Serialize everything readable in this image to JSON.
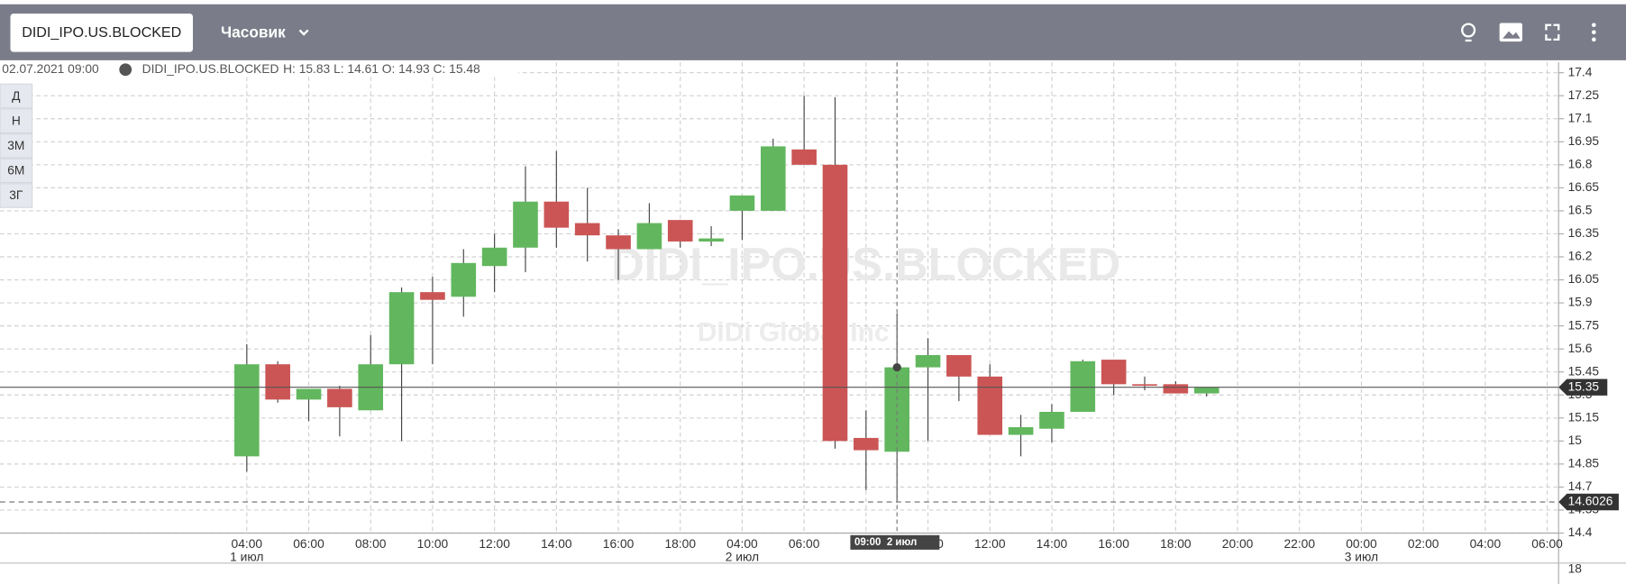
{
  "header": {
    "symbol_button": "DIDI_IPO.US.BLOCKED",
    "interval": "Часовик"
  },
  "info": {
    "datetime": "02.07.2021 09:00",
    "symbol": "DIDI_IPO.US.BLOCKED",
    "ohlc": "H: 15.83 L: 14.61 O: 14.93 C: 15.48"
  },
  "periods": [
    "Д",
    "Н",
    "3М",
    "6М",
    "3Г"
  ],
  "watermark": {
    "title": "DIDI_IPO.US.BLOCKED",
    "subtitle": "DiDi Global Inc"
  },
  "chart_data": {
    "type": "candlestick",
    "categories": [
      "04:00",
      null,
      "06:00",
      null,
      "08:00",
      null,
      "10:00",
      null,
      "12:00",
      null,
      "14:00",
      null,
      "16:00",
      null,
      "18:00",
      null,
      "04:00",
      null,
      "06:00",
      null,
      "08:00",
      null,
      "10:00",
      null,
      "12:00",
      null,
      "14:00",
      null,
      "16:00",
      null,
      "18:00",
      null,
      "20:00",
      null,
      "22:00",
      null,
      "00:00",
      null,
      "02:00",
      null,
      "04:00",
      null,
      "06:00"
    ],
    "date_labels": [
      "1 июл",
      null,
      null,
      null,
      null,
      null,
      null,
      null,
      null,
      null,
      null,
      null,
      null,
      null,
      null,
      null,
      "2 июл",
      null,
      null,
      null,
      null,
      null,
      null,
      null,
      null,
      null,
      null,
      null,
      null,
      null,
      null,
      null,
      null,
      null,
      null,
      null,
      "3 июл",
      null,
      null,
      null,
      null,
      null,
      null
    ],
    "open": [
      14.9,
      15.5,
      15.27,
      15.34,
      15.2,
      15.5,
      15.97,
      15.94,
      16.14,
      16.26,
      16.56,
      16.42,
      16.34,
      16.25,
      16.44,
      16.3,
      16.5,
      16.5,
      16.9,
      16.8,
      15.02,
      14.93,
      15.48,
      15.56,
      15.42,
      15.04,
      15.08,
      15.19,
      15.53,
      15.37,
      15.37,
      15.31,
      null,
      null,
      null,
      null,
      null,
      null,
      null,
      null,
      null,
      null,
      null
    ],
    "high": [
      15.63,
      15.52,
      15.34,
      15.36,
      15.69,
      16.0,
      16.07,
      16.25,
      16.35,
      16.79,
      16.89,
      16.65,
      16.38,
      16.55,
      16.44,
      16.4,
      16.6,
      16.97,
      17.25,
      17.24,
      15.2,
      15.83,
      15.67,
      15.56,
      15.5,
      15.17,
      15.24,
      15.53,
      15.53,
      15.42,
      15.39,
      15.35,
      null,
      null,
      null,
      null,
      null,
      null,
      null,
      null,
      null,
      null,
      null
    ],
    "low": [
      14.8,
      15.25,
      15.13,
      15.03,
      15.2,
      15.0,
      15.5,
      15.81,
      15.97,
      16.1,
      16.26,
      16.17,
      16.05,
      16.25,
      16.26,
      16.27,
      16.31,
      16.5,
      16.8,
      14.95,
      14.68,
      14.61,
      15.0,
      15.26,
      15.04,
      14.9,
      14.99,
      15.19,
      15.3,
      15.33,
      15.31,
      15.29,
      null,
      null,
      null,
      null,
      null,
      null,
      null,
      null,
      null,
      null,
      null
    ],
    "close": [
      15.5,
      15.27,
      15.34,
      15.22,
      15.5,
      15.97,
      15.92,
      16.16,
      16.26,
      16.56,
      16.39,
      16.34,
      16.25,
      16.42,
      16.3,
      16.32,
      16.6,
      16.92,
      16.8,
      15.0,
      14.94,
      15.48,
      15.56,
      15.42,
      15.04,
      15.09,
      15.19,
      15.52,
      15.37,
      15.36,
      15.31,
      15.35,
      null,
      null,
      null,
      null,
      null,
      null,
      null,
      null,
      null,
      null,
      null
    ],
    "up_color": "#62b75e",
    "down_color": "#cb5555",
    "ylim": [
      14.4,
      17.4
    ],
    "yticks": [
      14.4,
      14.55,
      14.7,
      14.85,
      15,
      15.15,
      15.3,
      15.45,
      15.6,
      15.75,
      15.9,
      16.05,
      16.2,
      16.35,
      16.5,
      16.65,
      16.8,
      16.95,
      17.1,
      17.25,
      17.4
    ],
    "grid": true,
    "last_price": 15.35,
    "marker_price": 14.6026,
    "crosshair": {
      "index": 21,
      "label": "09:00  2 июл"
    },
    "lower_pane_label": "18"
  }
}
